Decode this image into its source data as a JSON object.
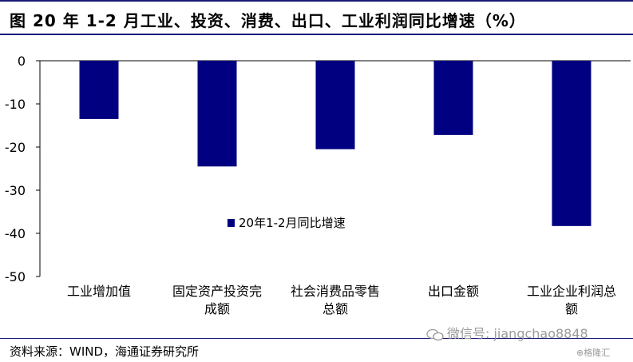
{
  "header": {
    "title": "图    20 年 1-2 月工业、投资、消费、出口、工业利润同比增速（%）"
  },
  "footer": {
    "source": "资料来源：WIND，海通证券研究所",
    "watermark": "微信号: jiangchao8848",
    "corner_mark": "格隆汇"
  },
  "chart_data": {
    "type": "bar",
    "categories": [
      [
        "工业增加值"
      ],
      [
        "固定资产投资完",
        "成额"
      ],
      [
        "社会消费品零售",
        "总额"
      ],
      [
        "出口金额"
      ],
      [
        "工业企业利润总",
        "额"
      ]
    ],
    "series": [
      {
        "name": "20年1-2月同比增速",
        "values": [
          -13.5,
          -24.5,
          -20.5,
          -17.2,
          -38.3
        ]
      }
    ],
    "ylim": [
      -50,
      0
    ],
    "yticks": [
      0,
      -10,
      -20,
      -30,
      -40,
      -50
    ],
    "grid": false,
    "legend_position": "center",
    "colors": {
      "bar": "#000080",
      "axis": "#000000"
    }
  }
}
